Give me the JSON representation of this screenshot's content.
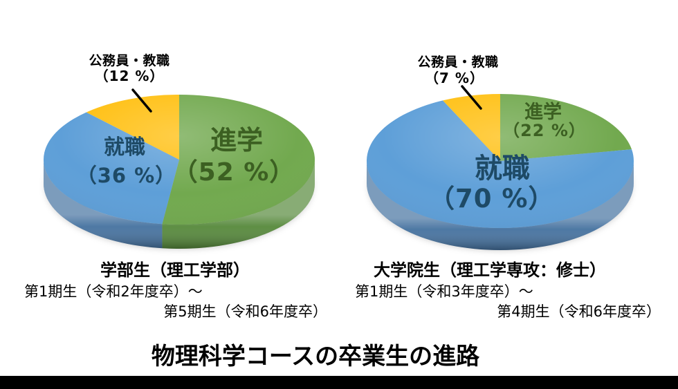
{
  "page": {
    "background": "#ffffff",
    "bottom_bar_color": "#000000"
  },
  "title": "物理科学コースの卒業生の進路",
  "colors": {
    "green": "#72A94F",
    "blue": "#5E9FD8",
    "yellow": "#FFC013",
    "green_side": "#55883A",
    "blue_side": "#44719F",
    "yellow_side": "#C79000",
    "navy_text": "#1E4A66",
    "green_text": "#3C6022",
    "label_black": "#000000"
  },
  "chart_data": [
    {
      "type": "pie",
      "projection": "3d",
      "position": "left",
      "title": "学部生（理工学部）",
      "subtitle_lines": [
        "第1期生（令和2年度卒）～",
        "第5期生（令和6年度卒）"
      ],
      "start_angle_deg": 0,
      "direction": "clockwise",
      "slices": [
        {
          "label": "進学",
          "value": 52,
          "display": "（52 %）",
          "color_key": "green"
        },
        {
          "label": "就職",
          "value": 36,
          "display": "（36 %）",
          "color_key": "blue"
        },
        {
          "label": "公務員・教職",
          "value": 12,
          "display": "（12 %）",
          "color_key": "yellow"
        }
      ]
    },
    {
      "type": "pie",
      "projection": "3d",
      "position": "right",
      "title": "大学院生（理工学専攻：修士）",
      "subtitle_lines": [
        "第1期生（令和3年度卒）～",
        "第4期生（令和6年度卒）"
      ],
      "start_angle_deg": 0,
      "direction": "clockwise",
      "slices": [
        {
          "label": "進学",
          "value": 22,
          "display": "（22 %）",
          "color_key": "green"
        },
        {
          "label": "就職",
          "value": 70,
          "display": "（70 %）",
          "color_key": "blue"
        },
        {
          "label": "公務員・教職",
          "value": 7,
          "display": "（7 %）",
          "color_key": "yellow"
        }
      ]
    }
  ]
}
